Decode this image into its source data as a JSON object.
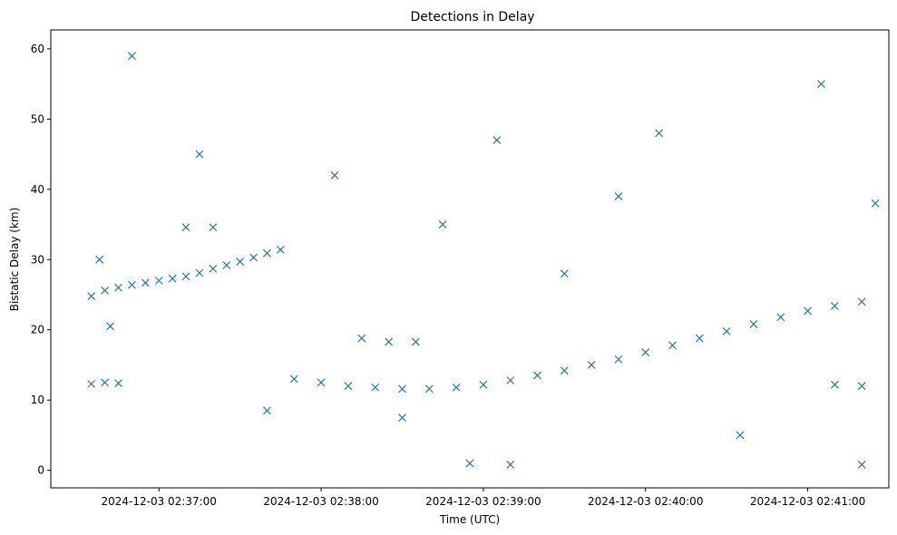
{
  "chart_data": {
    "type": "scatter",
    "title": "Detections in Delay",
    "xlabel": "Time (UTC)",
    "ylabel": "Bistatic Delay (km)",
    "marker": "x",
    "color": "#1f77b4",
    "xlim": [
      "2024-12-03 02:36:20",
      "2024-12-03 02:41:30"
    ],
    "ylim": [
      -2.5,
      62.7
    ],
    "x_ticks": [
      "2024-12-03 02:37:00",
      "2024-12-03 02:38:00",
      "2024-12-03 02:39:00",
      "2024-12-03 02:40:00",
      "2024-12-03 02:41:00"
    ],
    "y_ticks": [
      "0",
      "10",
      "20",
      "30",
      "40",
      "50",
      "60"
    ],
    "grid": false,
    "series": [
      {
        "name": "",
        "points": [
          [
            "02:36:35",
            24.8
          ],
          [
            "02:36:40",
            25.6
          ],
          [
            "02:36:45",
            26.0
          ],
          [
            "02:36:50",
            26.4
          ],
          [
            "02:36:55",
            26.7
          ],
          [
            "02:37:00",
            27.0
          ],
          [
            "02:37:05",
            27.3
          ],
          [
            "02:37:10",
            27.6
          ],
          [
            "02:37:15",
            28.1
          ],
          [
            "02:37:20",
            28.7
          ],
          [
            "02:37:25",
            29.2
          ],
          [
            "02:37:30",
            29.7
          ],
          [
            "02:37:35",
            30.3
          ],
          [
            "02:37:40",
            30.9
          ],
          [
            "02:37:45",
            31.4
          ],
          [
            "02:36:35",
            12.3
          ],
          [
            "02:36:40",
            12.5
          ],
          [
            "02:36:45",
            12.4
          ],
          [
            "02:37:50",
            13.0
          ],
          [
            "02:38:00",
            12.5
          ],
          [
            "02:38:10",
            12.0
          ],
          [
            "02:38:20",
            11.8
          ],
          [
            "02:38:30",
            11.6
          ],
          [
            "02:38:40",
            11.6
          ],
          [
            "02:38:50",
            11.8
          ],
          [
            "02:39:00",
            12.2
          ],
          [
            "02:39:10",
            12.8
          ],
          [
            "02:39:20",
            13.5
          ],
          [
            "02:39:30",
            14.2
          ],
          [
            "02:39:40",
            15.0
          ],
          [
            "02:39:50",
            15.8
          ],
          [
            "02:40:00",
            16.8
          ],
          [
            "02:40:10",
            17.8
          ],
          [
            "02:40:20",
            18.8
          ],
          [
            "02:40:30",
            19.8
          ],
          [
            "02:40:40",
            20.8
          ],
          [
            "02:40:50",
            21.8
          ],
          [
            "02:41:00",
            22.7
          ],
          [
            "02:41:10",
            23.4
          ],
          [
            "02:41:20",
            24.0
          ],
          [
            "02:41:10",
            12.2
          ],
          [
            "02:41:20",
            12.0
          ],
          [
            "02:38:15",
            18.8
          ],
          [
            "02:38:25",
            18.3
          ],
          [
            "02:38:35",
            18.3
          ],
          [
            "02:37:10",
            34.6
          ],
          [
            "02:37:20",
            34.6
          ],
          [
            "02:39:05",
            47.0
          ],
          [
            "02:38:55",
            1.0
          ],
          [
            "02:39:10",
            0.8
          ],
          [
            "02:36:38",
            30.0
          ],
          [
            "02:36:42",
            20.5
          ],
          [
            "02:36:50",
            59.0
          ],
          [
            "02:37:15",
            45.0
          ],
          [
            "02:37:40",
            8.5
          ],
          [
            "02:38:05",
            42.0
          ],
          [
            "02:38:45",
            35.0
          ],
          [
            "02:39:30",
            28.0
          ],
          [
            "02:40:05",
            48.0
          ],
          [
            "02:40:35",
            5.0
          ],
          [
            "02:41:05",
            55.0
          ],
          [
            "02:41:25",
            38.0
          ],
          [
            "02:41:20",
            0.8
          ],
          [
            "02:38:30",
            7.5
          ],
          [
            "02:39:50",
            39.0
          ]
        ]
      }
    ]
  }
}
